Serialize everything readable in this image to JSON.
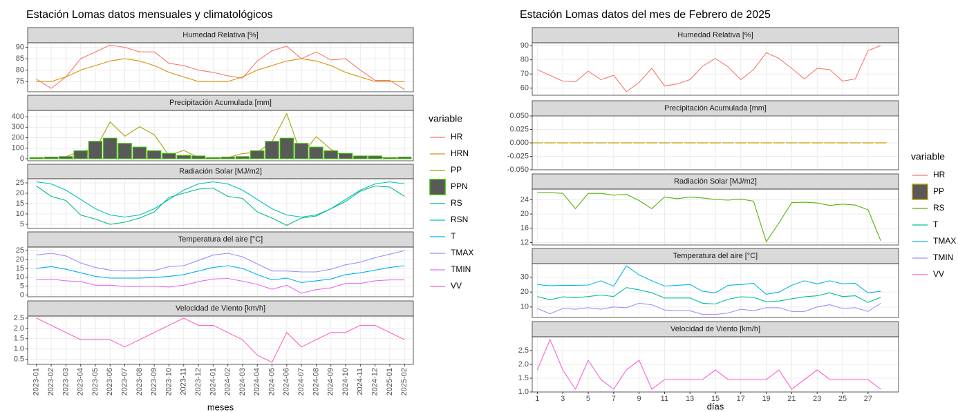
{
  "chart_data": [
    {
      "type": "line",
      "title": "Estación Lomas datos mensuales y climatológicos",
      "x_label": "meses",
      "legend_title": "variable",
      "grid": true,
      "categories": [
        "2023-01",
        "2023-02",
        "2023-03",
        "2023-04",
        "2023-05",
        "2023-06",
        "2023-07",
        "2023-08",
        "2023-09",
        "2023-10",
        "2023-11",
        "2023-12",
        "2024-01",
        "2024-02",
        "2024-03",
        "2024-04",
        "2024-05",
        "2024-06",
        "2024-07",
        "2024-08",
        "2024-09",
        "2024-10",
        "2024-11",
        "2024-12",
        "2025-01",
        "2025-02"
      ],
      "panels": [
        {
          "title": "Humedad Relativa [%]",
          "ylim": [
            70.5,
            92
          ],
          "yticks": [
            75,
            80,
            85,
            90
          ],
          "series": [
            {
              "name": "HR",
              "color": "#F8766D",
              "values": [
                76,
                72,
                77,
                85,
                88,
                91,
                90,
                88,
                88,
                83,
                82,
                80,
                79,
                77.5,
                76.5,
                84,
                88.5,
                90.5,
                85,
                88,
                84.5,
                85,
                80,
                75.5,
                75.5,
                71.5
              ]
            },
            {
              "name": "HRN",
              "color": "#D89000",
              "values": [
                75,
                75,
                77,
                80,
                82,
                84,
                85,
                84,
                82,
                79,
                77,
                75,
                75,
                75,
                77,
                80,
                82,
                84,
                85,
                84,
                82,
                79,
                77,
                75,
                75,
                75
              ]
            }
          ]
        },
        {
          "title": "Precipitación Acumulada [mm]",
          "ylim": [
            -20,
            460
          ],
          "yticks": [
            0,
            100,
            200,
            300,
            400
          ],
          "series": [
            {
              "name": "PP",
              "color": "#A3A500",
              "values": [
                0,
                0,
                20,
                70,
                90,
                350,
                215,
                305,
                230,
                30,
                80,
                10,
                0,
                10,
                50,
                60,
                160,
                430,
                30,
                210,
                90,
                10,
                20,
                20,
                0,
                0
              ]
            },
            {
              "name": "PPN",
              "style": "bar",
              "color": "#39B600",
              "fill": "#595959",
              "values": [
                10,
                15,
                20,
                75,
                165,
                195,
                145,
                110,
                75,
                50,
                30,
                25,
                10,
                15,
                20,
                75,
                165,
                195,
                145,
                110,
                75,
                50,
                25,
                25,
                10,
                15
              ]
            }
          ]
        },
        {
          "title": "Radiación Solar [MJ/m2]",
          "ylim": [
            3,
            27
          ],
          "yticks": [
            5,
            10,
            15,
            20,
            25
          ],
          "series": [
            {
              "name": "RS",
              "color": "#00BF7D",
              "values": [
                23.5,
                18.5,
                16.5,
                9.5,
                7.5,
                5,
                6,
                8,
                11,
                18,
                20,
                22,
                22.5,
                18.5,
                17.5,
                11,
                8,
                4.5,
                8,
                9,
                12.5,
                16,
                21,
                23.5,
                23,
                18.5
              ]
            },
            {
              "name": "RSN",
              "color": "#00BFC4",
              "values": [
                25.5,
                24.5,
                21.5,
                17,
                12.5,
                9.5,
                8.5,
                9.5,
                12.5,
                17,
                21.5,
                24.5,
                25.5,
                24.5,
                21.5,
                17,
                12.5,
                9.5,
                8.5,
                9.5,
                12.5,
                17,
                21.5,
                24.5,
                25.5,
                24.5
              ]
            }
          ]
        },
        {
          "title": "Temperatura del aire [°C]",
          "ylim": [
            -1,
            27
          ],
          "yticks": [
            0,
            5,
            10,
            15,
            20,
            25
          ],
          "series": [
            {
              "name": "T",
              "color": "#00B0F6",
              "values": [
                15,
                16,
                14.5,
                12.5,
                10.5,
                9.5,
                9.5,
                9.5,
                9.8,
                10.5,
                11.5,
                13.5,
                15.5,
                16.5,
                15,
                11.5,
                8.5,
                9.5,
                7,
                8,
                9,
                11.5,
                12.5,
                14,
                15.5,
                16.5
              ]
            },
            {
              "name": "TMAX",
              "color": "#9590FF",
              "values": [
                22.5,
                23.5,
                22,
                18,
                15.5,
                14,
                13.5,
                14,
                13.8,
                16,
                16.5,
                19.5,
                22.5,
                23.5,
                21.5,
                17.5,
                13.5,
                13.5,
                13,
                13,
                14.5,
                17,
                18.5,
                21,
                23,
                25
              ]
            },
            {
              "name": "TMIN",
              "color": "#E76BF3",
              "values": [
                8.5,
                9,
                8,
                7.5,
                5.5,
                5.5,
                4.8,
                4.8,
                5,
                4.5,
                5.5,
                7.5,
                9,
                9.3,
                7.8,
                6,
                3.2,
                5.5,
                1,
                3,
                4,
                6.5,
                6.5,
                8,
                8.5,
                8.5
              ]
            }
          ]
        },
        {
          "title": "Velocidad de Viento [km/h]",
          "ylim": [
            0.25,
            2.6
          ],
          "yticks": [
            0.5,
            {
              "value": 1,
              "label": "1.0"
            },
            1.5,
            {
              "value": 2,
              "label": "2.0"
            },
            2.5
          ],
          "series": [
            {
              "name": "VV",
              "color": "#FF62BC",
              "values": [
                2.5,
                2.15,
                1.8,
                1.45,
                1.45,
                1.45,
                1.1,
                1.45,
                1.8,
                2.15,
                2.5,
                2.15,
                2.15,
                1.8,
                1.45,
                0.7,
                0.35,
                1.8,
                1.1,
                1.45,
                1.8,
                1.8,
                2.15,
                2.15,
                1.8,
                1.45
              ]
            }
          ]
        }
      ]
    },
    {
      "type": "line",
      "title": "Estación Lomas datos del mes de Febrero de 2025",
      "x_label": "días",
      "legend_title": "variable",
      "grid": true,
      "x": [
        1,
        2,
        3,
        4,
        5,
        6,
        7,
        8,
        9,
        10,
        11,
        12,
        13,
        14,
        15,
        16,
        17,
        18,
        19,
        20,
        21,
        22,
        23,
        24,
        25,
        26,
        27,
        28
      ],
      "xlim": [
        0.6,
        29.4
      ],
      "xticks": [
        1,
        3,
        5,
        7,
        9,
        11,
        13,
        15,
        17,
        19,
        21,
        23,
        25,
        27
      ],
      "panels": [
        {
          "title": "Humedad Relativa [%]",
          "ylim": [
            55,
            92
          ],
          "yticks": [
            60,
            70,
            80,
            90
          ],
          "series": [
            {
              "name": "HR",
              "color": "#F8766D",
              "values": [
                73,
                69,
                65,
                64.5,
                72,
                66,
                69,
                57.5,
                64,
                74,
                61.5,
                63,
                66,
                75.5,
                81,
                75,
                66,
                73,
                85,
                81,
                74,
                66.5,
                74,
                73,
                65,
                66.5,
                86.5,
                90
              ]
            }
          ]
        },
        {
          "title": "Precipitación Acumulada [mm]",
          "ylim": [
            -0.05,
            0.05
          ],
          "yticks": [
            {
              "value": -0.05,
              "label": "-0.050"
            },
            -0.025,
            {
              "value": 0,
              "label": "0.000"
            },
            0.025,
            {
              "value": 0.05,
              "label": "0.050"
            }
          ],
          "series": [
            {
              "name": "PP",
              "style": "bar",
              "color": "#C49A00",
              "fill": "#595959",
              "values": [
                0,
                0,
                0,
                0,
                0,
                0,
                0,
                0,
                0,
                0,
                0,
                0,
                0,
                0,
                0,
                0,
                0,
                0,
                0,
                0,
                0,
                0,
                0,
                0,
                0,
                0,
                0,
                0
              ]
            }
          ]
        },
        {
          "title": "Radiación Solar [MJ/m2]",
          "ylim": [
            11.3,
            27
          ],
          "yticks": [
            12,
            16,
            20,
            24
          ],
          "series": [
            {
              "name": "RS",
              "color": "#53B400",
              "values": [
                26,
                26,
                25.8,
                21.5,
                25.8,
                25.8,
                25.3,
                25.5,
                23.8,
                21.5,
                24.8,
                24.3,
                24.8,
                24.5,
                24.1,
                23.9,
                24.2,
                23.6,
                12.2,
                17.5,
                23.2,
                23.3,
                23.1,
                22.4,
                22.8,
                22.5,
                21.2,
                12.5
              ]
            }
          ]
        },
        {
          "title": "Temperatura del aire [°C]",
          "ylim": [
            3,
            39
          ],
          "yticks": [
            10,
            20,
            30
          ],
          "series": [
            {
              "name": "T",
              "color": "#00C094",
              "values": [
                17,
                14.8,
                16.8,
                16.2,
                17,
                18,
                17,
                23,
                21.5,
                19.5,
                16,
                16,
                16,
                12.5,
                12,
                15.2,
                16.8,
                16.5,
                13.5,
                14,
                15.5,
                16.8,
                17.5,
                19.5,
                17,
                17.5,
                13,
                16.5
              ]
            },
            {
              "name": "TMAX",
              "color": "#00B6EB",
              "values": [
                25,
                24.2,
                24.5,
                24.5,
                24.7,
                27.5,
                23.9,
                37.5,
                31.5,
                27.5,
                24,
                24.5,
                25,
                20.5,
                19.5,
                24.5,
                25,
                25.8,
                18.5,
                20,
                24.5,
                27.5,
                25.5,
                27.5,
                25.5,
                25.8,
                19.5,
                20.5
              ]
            },
            {
              "name": "TMIN",
              "color": "#A58AFF",
              "values": [
                9,
                5.5,
                9,
                8.5,
                9.5,
                8.5,
                10,
                9.5,
                12.5,
                11.5,
                8,
                7.5,
                7.5,
                5,
                5,
                6,
                8.5,
                7.5,
                9.5,
                9.5,
                7,
                7,
                10,
                11.5,
                9,
                9.5,
                7,
                12.5
              ]
            }
          ]
        },
        {
          "title": "Velocidad de Viento [km/h]",
          "ylim": [
            1,
            3
          ],
          "yticks": [
            {
              "value": 1,
              "label": "1.0"
            },
            1.5,
            {
              "value": 2,
              "label": "2.0"
            },
            2.5
          ],
          "series": [
            {
              "name": "VV",
              "color": "#FB61D7",
              "values": [
                1.8,
                2.9,
                1.8,
                1.1,
                2.15,
                1.45,
                1.1,
                1.8,
                2.15,
                1.1,
                1.45,
                1.45,
                1.45,
                1.45,
                1.8,
                1.45,
                1.45,
                1.45,
                1.45,
                1.8,
                1.1,
                1.45,
                1.8,
                1.45,
                1.45,
                1.45,
                1.45,
                1.1
              ]
            }
          ]
        }
      ]
    }
  ]
}
